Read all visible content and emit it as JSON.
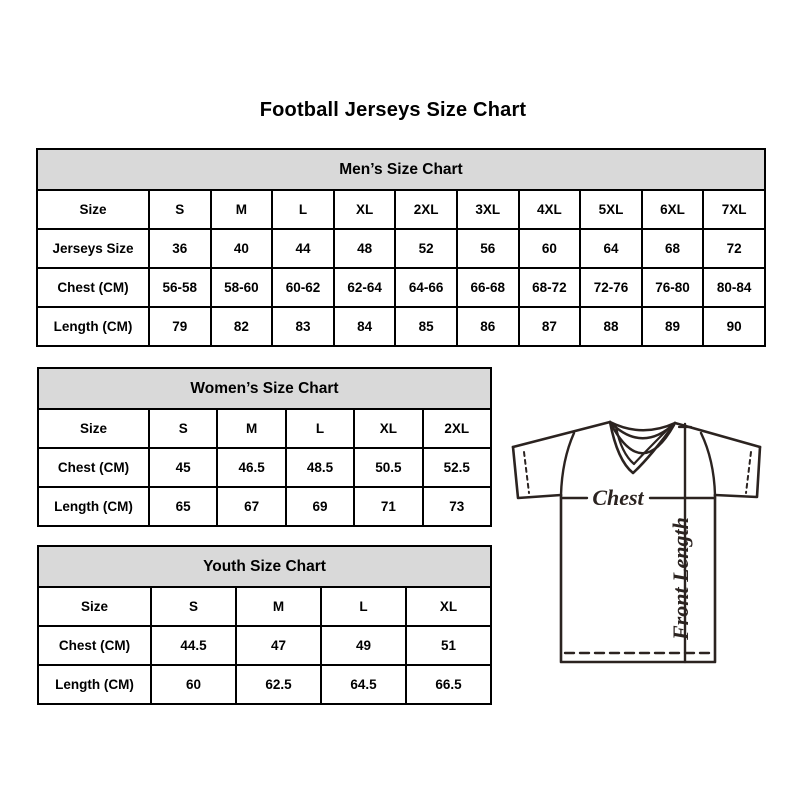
{
  "page_title": "Football Jerseys Size Chart",
  "chart_data": [
    {
      "type": "table",
      "id": "mens",
      "title": "Men’s Size Chart",
      "columns": [
        "Size",
        "S",
        "M",
        "L",
        "XL",
        "2XL",
        "3XL",
        "4XL",
        "5XL",
        "6XL",
        "7XL"
      ],
      "rows": [
        [
          "Size",
          "S",
          "M",
          "L",
          "XL",
          "2XL",
          "3XL",
          "4XL",
          "5XL",
          "6XL",
          "7XL"
        ],
        [
          "Jerseys Size",
          "36",
          "40",
          "44",
          "48",
          "52",
          "56",
          "60",
          "64",
          "68",
          "72"
        ],
        [
          "Chest (CM)",
          "56-58",
          "58-60",
          "60-62",
          "62-64",
          "64-66",
          "66-68",
          "68-72",
          "72-76",
          "76-80",
          "80-84"
        ],
        [
          "Length (CM)",
          "79",
          "82",
          "83",
          "84",
          "85",
          "86",
          "87",
          "88",
          "89",
          "90"
        ]
      ]
    },
    {
      "type": "table",
      "id": "womens",
      "title": "Women’s Size Chart",
      "columns": [
        "Size",
        "S",
        "M",
        "L",
        "XL",
        "2XL"
      ],
      "rows": [
        [
          "Size",
          "S",
          "M",
          "L",
          "XL",
          "2XL"
        ],
        [
          "Chest (CM)",
          "45",
          "46.5",
          "48.5",
          "50.5",
          "52.5"
        ],
        [
          "Length (CM)",
          "65",
          "67",
          "69",
          "71",
          "73"
        ]
      ]
    },
    {
      "type": "table",
      "id": "youth",
      "title": "Youth Size Chart",
      "columns": [
        "Size",
        "S",
        "M",
        "L",
        "XL"
      ],
      "rows": [
        [
          "Size",
          "S",
          "M",
          "L",
          "XL"
        ],
        [
          "Chest (CM)",
          "44.5",
          "47",
          "49",
          "51"
        ],
        [
          "Length (CM)",
          "60",
          "62.5",
          "64.5",
          "66.5"
        ]
      ]
    }
  ],
  "diagram": {
    "chest_label": "Chest",
    "front_length_label": "Front Length"
  },
  "colors": {
    "table_header_bg": "#d9d9d9",
    "table_border": "#000000",
    "jersey_line": "#2b2320"
  }
}
